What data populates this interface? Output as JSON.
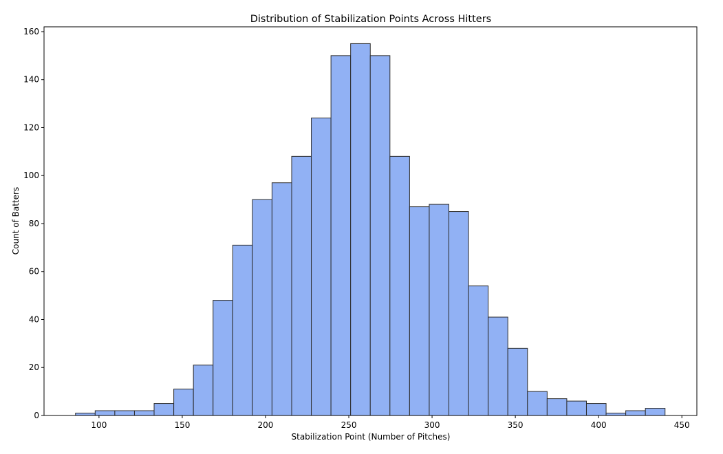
{
  "chart_data": {
    "type": "bar",
    "title": "Distribution of Stabilization Points Across Hitters",
    "xlabel": "Stabilization Point (Number of Pitches)",
    "ylabel": "Count of Batters",
    "xlim": [
      67,
      459
    ],
    "ylim": [
      0,
      162
    ],
    "grid": false,
    "bar_color": "#91b1f4",
    "edge_color": "#2b2b2b",
    "bin_width": 11.8,
    "x_ticks": [
      100,
      150,
      200,
      250,
      300,
      350,
      400,
      450
    ],
    "y_ticks": [
      0,
      20,
      40,
      60,
      80,
      100,
      120,
      140,
      160
    ],
    "bins": [
      {
        "start": 85.9,
        "count": 1
      },
      {
        "start": 97.7,
        "count": 2
      },
      {
        "start": 109.5,
        "count": 2
      },
      {
        "start": 121.3,
        "count": 2
      },
      {
        "start": 133.1,
        "count": 5
      },
      {
        "start": 144.9,
        "count": 11
      },
      {
        "start": 156.7,
        "count": 21
      },
      {
        "start": 168.5,
        "count": 48
      },
      {
        "start": 180.3,
        "count": 71
      },
      {
        "start": 192.1,
        "count": 90
      },
      {
        "start": 203.9,
        "count": 97
      },
      {
        "start": 215.7,
        "count": 108
      },
      {
        "start": 227.5,
        "count": 124
      },
      {
        "start": 239.3,
        "count": 150
      },
      {
        "start": 251.1,
        "count": 155
      },
      {
        "start": 262.9,
        "count": 150
      },
      {
        "start": 274.7,
        "count": 108
      },
      {
        "start": 286.5,
        "count": 87
      },
      {
        "start": 298.3,
        "count": 88
      },
      {
        "start": 310.1,
        "count": 85
      },
      {
        "start": 321.9,
        "count": 54
      },
      {
        "start": 333.7,
        "count": 41
      },
      {
        "start": 345.5,
        "count": 28
      },
      {
        "start": 357.3,
        "count": 10
      },
      {
        "start": 369.1,
        "count": 7
      },
      {
        "start": 380.9,
        "count": 6
      },
      {
        "start": 392.7,
        "count": 5
      },
      {
        "start": 404.5,
        "count": 1
      },
      {
        "start": 416.3,
        "count": 2
      },
      {
        "start": 428.1,
        "count": 3
      }
    ]
  }
}
